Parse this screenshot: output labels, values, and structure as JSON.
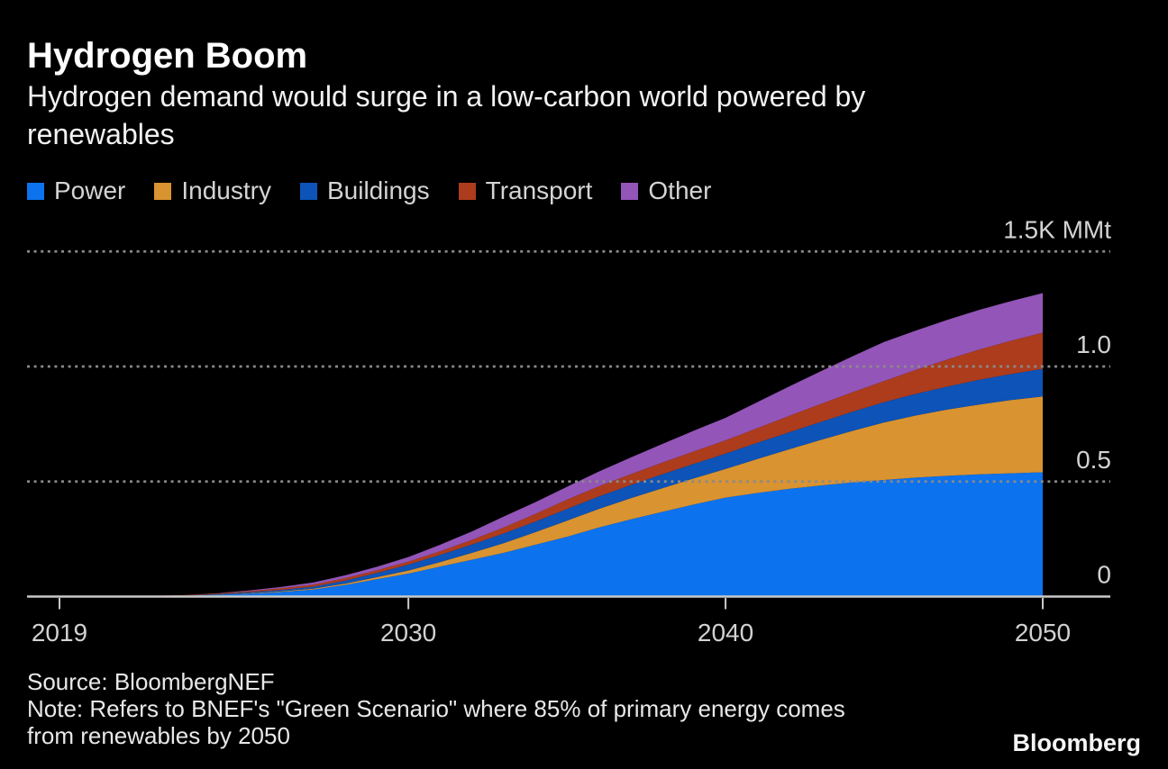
{
  "header": {
    "title": "Hydrogen Boom",
    "subtitle_lines": [
      "Hydrogen demand would surge in a low-carbon world powered by",
      "renewables"
    ]
  },
  "legend": [
    {
      "label": "Power",
      "color": "#0c72ee"
    },
    {
      "label": "Industry",
      "color": "#d99330"
    },
    {
      "label": "Buildings",
      "color": "#0d53b8"
    },
    {
      "label": "Transport",
      "color": "#ad3c1d"
    },
    {
      "label": "Other",
      "color": "#9355b8"
    }
  ],
  "chart_data": {
    "type": "area",
    "stacked": true,
    "title": "Hydrogen Boom",
    "xlabel": "",
    "ylabel": "MMt",
    "ylim": [
      0,
      1.5
    ],
    "xlim": [
      2019,
      2050
    ],
    "grid": "dotted horizontal, drawn above areas",
    "legend_position": "top-left above plot",
    "x": [
      2019,
      2020,
      2021,
      2022,
      2023,
      2024,
      2025,
      2026,
      2027,
      2028,
      2029,
      2030,
      2031,
      2032,
      2033,
      2034,
      2035,
      2036,
      2037,
      2038,
      2039,
      2040,
      2041,
      2042,
      2043,
      2044,
      2045,
      2046,
      2047,
      2048,
      2049,
      2050
    ],
    "x_ticks": [
      {
        "value": 2019,
        "label": "2019"
      },
      {
        "value": 2030,
        "label": "2030"
      },
      {
        "value": 2040,
        "label": "2040"
      },
      {
        "value": 2050,
        "label": "2050"
      }
    ],
    "y_ticks": [
      {
        "value": 0,
        "label": "0"
      },
      {
        "value": 0.5,
        "label": "0.5"
      },
      {
        "value": 1.0,
        "label": "1.0"
      },
      {
        "value": 1.5,
        "label": "1.5K MMt"
      }
    ],
    "unit_note": "values in thousands of million metric tons (K MMt)",
    "series": [
      {
        "name": "Power",
        "color": "#0c72ee",
        "values": [
          0,
          0,
          0.001,
          0.002,
          0.004,
          0.008,
          0.013,
          0.02,
          0.03,
          0.05,
          0.075,
          0.1,
          0.13,
          0.16,
          0.19,
          0.225,
          0.26,
          0.3,
          0.335,
          0.368,
          0.4,
          0.43,
          0.45,
          0.468,
          0.483,
          0.496,
          0.507,
          0.517,
          0.525,
          0.531,
          0.536,
          0.54
        ]
      },
      {
        "name": "Industry",
        "color": "#d99330",
        "values": [
          0,
          0,
          0,
          0,
          0,
          0.001,
          0.002,
          0.003,
          0.004,
          0.006,
          0.009,
          0.013,
          0.02,
          0.03,
          0.042,
          0.055,
          0.07,
          0.081,
          0.092,
          0.103,
          0.114,
          0.125,
          0.148,
          0.172,
          0.198,
          0.224,
          0.25,
          0.27,
          0.288,
          0.304,
          0.318,
          0.33
        ]
      },
      {
        "name": "Buildings",
        "color": "#0d53b8",
        "values": [
          0,
          0,
          0,
          0,
          0.001,
          0.002,
          0.004,
          0.006,
          0.009,
          0.013,
          0.018,
          0.026,
          0.031,
          0.036,
          0.042,
          0.046,
          0.051,
          0.054,
          0.057,
          0.06,
          0.063,
          0.066,
          0.07,
          0.074,
          0.078,
          0.083,
          0.088,
          0.094,
          0.1,
          0.107,
          0.113,
          0.12
        ]
      },
      {
        "name": "Transport",
        "color": "#ad3c1d",
        "values": [
          0,
          0,
          0,
          0.001,
          0.002,
          0.003,
          0.005,
          0.007,
          0.009,
          0.011,
          0.012,
          0.013,
          0.016,
          0.02,
          0.026,
          0.033,
          0.04,
          0.044,
          0.047,
          0.051,
          0.054,
          0.058,
          0.064,
          0.071,
          0.078,
          0.085,
          0.092,
          0.104,
          0.118,
          0.132,
          0.145,
          0.157
        ]
      },
      {
        "name": "Other",
        "color": "#9355b8",
        "values": [
          0,
          0,
          0,
          0,
          0,
          0.001,
          0.003,
          0.006,
          0.009,
          0.012,
          0.015,
          0.02,
          0.028,
          0.037,
          0.047,
          0.051,
          0.056,
          0.064,
          0.073,
          0.081,
          0.09,
          0.098,
          0.113,
          0.128,
          0.142,
          0.156,
          0.17,
          0.171,
          0.172,
          0.172,
          0.172,
          0.172
        ]
      }
    ]
  },
  "style": {
    "background": "#000000",
    "grid_color": "#8a8a8a",
    "axis_color": "#c9c9c9",
    "tick_label_color": "#d2d2d2"
  },
  "footer": {
    "source": "Source: BloombergNEF",
    "note_lines": [
      "Note: Refers to BNEF's \"Green Scenario\" where 85% of primary energy comes",
      "from renewables by 2050"
    ],
    "brand": "Bloomberg"
  }
}
